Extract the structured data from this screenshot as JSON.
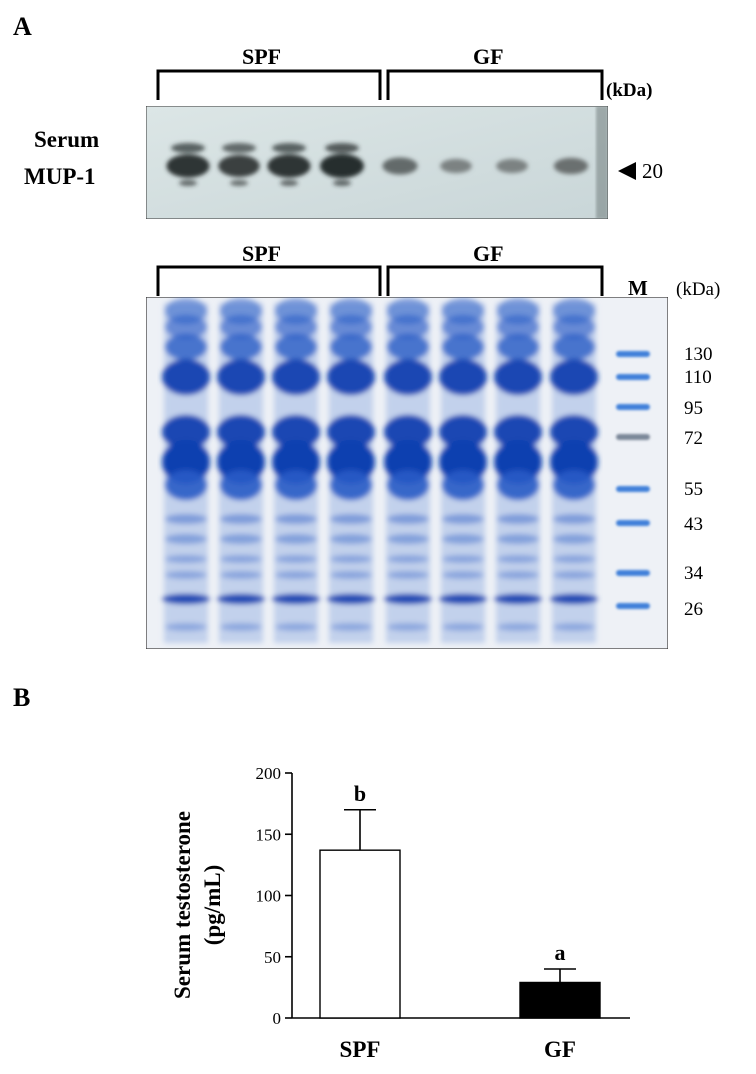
{
  "panel_a": {
    "label": "A",
    "western": {
      "groups": [
        "SPF",
        "GF"
      ],
      "unit": "(kDa)",
      "row_label_line1": "Serum",
      "row_label_line2": "MUP-1",
      "marker": "20",
      "band_intensity_spf": [
        0.95,
        0.85,
        0.95,
        1.0
      ],
      "band_intensity_gf": [
        0.5,
        0.3,
        0.3,
        0.45
      ]
    },
    "gel": {
      "groups": [
        "SPF",
        "GF"
      ],
      "marker_lane_label": "M",
      "unit": "(kDa)",
      "markers": [
        "130",
        "110",
        "95",
        "72",
        "55",
        "43",
        "34",
        "26"
      ]
    }
  },
  "panel_b": {
    "label": "B"
  },
  "chart_data": {
    "type": "bar",
    "categories": [
      "SPF",
      "GF"
    ],
    "values": [
      137,
      29
    ],
    "errors": [
      33,
      11
    ],
    "significance": [
      "b",
      "a"
    ],
    "bar_colors": [
      "#ffffff",
      "#000000"
    ],
    "ylabel_line1": "Serum testosterone",
    "ylabel_line2": "(pg/mL)",
    "ylim": [
      0,
      200
    ],
    "yticks": [
      "0",
      "50",
      "100",
      "150",
      "200"
    ],
    "grid": false
  }
}
